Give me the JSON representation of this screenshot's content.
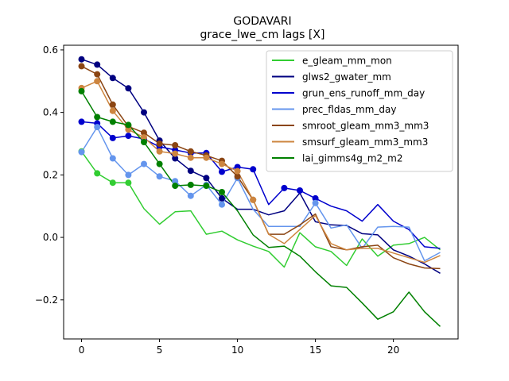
{
  "chart_data": {
    "type": "line",
    "title": "GODAVARI",
    "subtitle": "grace_lwe_cm lags [X]",
    "xlabel": "",
    "ylabel": "",
    "xlim": [
      -1.15,
      24.15
    ],
    "ylim": [
      -0.325,
      0.615
    ],
    "xticks": [
      0,
      5,
      10,
      15,
      20
    ],
    "yticks": [
      -0.2,
      0.0,
      0.2,
      0.4,
      0.6
    ],
    "ytick_labels": [
      "−0.2",
      "0.0",
      "0.2",
      "0.4",
      "0.6"
    ],
    "grid": false,
    "legend_position": "upper-right",
    "x": [
      0,
      1,
      2,
      3,
      4,
      5,
      6,
      7,
      8,
      9,
      10,
      11,
      12,
      13,
      14,
      15,
      16,
      17,
      18,
      19,
      20,
      21,
      22,
      23
    ],
    "series": [
      {
        "name": "e_gleam_mm_mon",
        "color": "#32cd32",
        "values": [
          0.275,
          0.205,
          0.175,
          0.175,
          0.092,
          0.042,
          0.082,
          0.085,
          0.01,
          0.02,
          -0.008,
          -0.028,
          -0.045,
          -0.095,
          0.015,
          -0.03,
          -0.045,
          -0.09,
          -0.005,
          -0.06,
          -0.025,
          -0.02,
          0.0,
          -0.04
        ],
        "markers": [
          0,
          1,
          2,
          3
        ]
      },
      {
        "name": "glws2_gwater_mm",
        "color": "#000080",
        "values": [
          0.57,
          0.553,
          0.51,
          0.477,
          0.4,
          0.31,
          0.253,
          0.213,
          0.19,
          0.125,
          0.09,
          0.09,
          0.072,
          0.085,
          0.142,
          0.05,
          0.04,
          0.038,
          0.012,
          0.008,
          -0.04,
          -0.06,
          -0.085,
          -0.115
        ],
        "markers": [
          0,
          1,
          2,
          3,
          4,
          5,
          6,
          7,
          8,
          9
        ]
      },
      {
        "name": "grun_ens_runoff_mm_day",
        "color": "#0000cd",
        "values": [
          0.37,
          0.365,
          0.318,
          0.325,
          0.315,
          0.29,
          0.28,
          0.27,
          0.27,
          0.21,
          0.225,
          0.218,
          0.105,
          0.158,
          0.15,
          0.125,
          0.1,
          0.085,
          0.052,
          0.105,
          0.052,
          0.025,
          -0.03,
          -0.035
        ],
        "markers": [
          0,
          1,
          2,
          3,
          4,
          5,
          6,
          7,
          8,
          9,
          10,
          11,
          13,
          14,
          15
        ]
      },
      {
        "name": "prec_fldas_mm_day",
        "color": "#6495ed",
        "values": [
          0.273,
          0.353,
          0.253,
          0.2,
          0.235,
          0.195,
          0.18,
          0.133,
          0.168,
          0.105,
          0.19,
          0.09,
          0.035,
          0.035,
          0.035,
          0.11,
          0.03,
          0.04,
          -0.035,
          0.033,
          0.035,
          0.033,
          -0.075,
          -0.048
        ],
        "markers": [
          0,
          1,
          2,
          3,
          4,
          5,
          6,
          7,
          8,
          9,
          10,
          15
        ]
      },
      {
        "name": "smroot_gleam_mm3_mm3",
        "color": "#8b4513",
        "values": [
          0.548,
          0.522,
          0.425,
          0.355,
          0.335,
          0.3,
          0.295,
          0.275,
          0.262,
          0.245,
          0.195,
          0.12,
          0.01,
          0.01,
          0.04,
          0.075,
          -0.03,
          -0.04,
          -0.03,
          -0.025,
          -0.065,
          -0.085,
          -0.098,
          -0.1
        ],
        "markers": [
          0,
          1,
          2,
          3,
          4,
          5,
          6,
          7,
          8,
          9,
          10,
          11
        ]
      },
      {
        "name": "smsurf_gleam_mm3_mm3",
        "color": "#cd853f",
        "values": [
          0.478,
          0.5,
          0.405,
          0.345,
          0.32,
          0.275,
          0.268,
          0.255,
          0.255,
          0.235,
          0.212,
          0.12,
          0.01,
          -0.02,
          0.025,
          0.07,
          -0.02,
          -0.04,
          -0.035,
          -0.035,
          -0.05,
          -0.065,
          -0.08,
          -0.058
        ],
        "markers": [
          0,
          1,
          2,
          3,
          4,
          5,
          6,
          7,
          8,
          9,
          10,
          11
        ]
      },
      {
        "name": "lai_gimms4g_m2_m2",
        "color": "#008000",
        "values": [
          0.468,
          0.385,
          0.37,
          0.36,
          0.305,
          0.235,
          0.165,
          0.168,
          0.165,
          0.145,
          0.085,
          0.008,
          -0.032,
          -0.028,
          -0.06,
          -0.11,
          -0.155,
          -0.16,
          -0.21,
          -0.262,
          -0.238,
          -0.175,
          -0.238,
          -0.285
        ],
        "markers": [
          0,
          1,
          2,
          3,
          4,
          5,
          6,
          7,
          8,
          9
        ]
      }
    ]
  }
}
